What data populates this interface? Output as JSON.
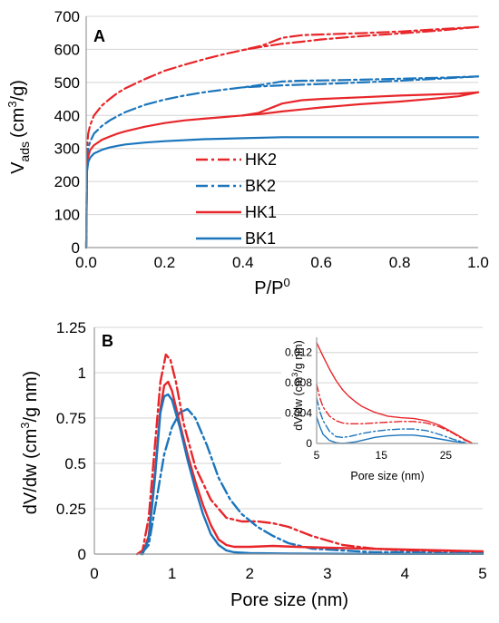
{
  "colors": {
    "red": "#e8262a",
    "blue": "#1b75bc",
    "axis": "#999999",
    "grid": "#d4d4d4"
  },
  "chart_data": [
    {
      "panel": "A",
      "type": "line",
      "xlabel": "P/P",
      "xlabel_sup": "0",
      "ylabel_main": "V",
      "ylabel_sub": "ads",
      "ylabel_unit": "(cm",
      "ylabel_unit_sup": "3",
      "ylabel_unit_end": "/g)",
      "xlim": [
        0,
        1
      ],
      "ylim": [
        0,
        700
      ],
      "xticks": [
        "0.0",
        "0.2",
        "0.4",
        "0.6",
        "0.8",
        "1.0"
      ],
      "yticks": [
        "0",
        "100",
        "200",
        "300",
        "400",
        "500",
        "600",
        "700"
      ],
      "xtick_values": [
        0,
        0.2,
        0.4,
        0.6,
        0.8,
        1.0
      ],
      "ytick_values": [
        0,
        100,
        200,
        300,
        400,
        500,
        600,
        700
      ],
      "grid": "horizontal",
      "legend_position": "bottom-center",
      "series": [
        {
          "name": "HK2",
          "color": "#e8262a",
          "style": "dashdot",
          "x": [
            0,
            0.002,
            0.005,
            0.01,
            0.02,
            0.04,
            0.06,
            0.08,
            0.1,
            0.15,
            0.2,
            0.25,
            0.3,
            0.35,
            0.4,
            0.45,
            0.5,
            0.55,
            0.6,
            0.7,
            0.8,
            0.9,
            1.0
          ],
          "y": [
            0,
            300,
            345,
            370,
            400,
            430,
            450,
            468,
            482,
            510,
            535,
            553,
            570,
            585,
            598,
            612,
            635,
            643,
            645,
            649,
            654,
            661,
            668
          ],
          "desorption": {
            "x": [
              1.0,
              0.9,
              0.8,
              0.7,
              0.6,
              0.55,
              0.5,
              0.45,
              0.4
            ],
            "y": [
              668,
              657,
              648,
              640,
              630,
              623,
              617,
              608,
              598
            ]
          }
        },
        {
          "name": "BK2",
          "color": "#1b75bc",
          "style": "dashdot",
          "x": [
            0,
            0.002,
            0.005,
            0.01,
            0.02,
            0.04,
            0.06,
            0.08,
            0.1,
            0.15,
            0.2,
            0.25,
            0.3,
            0.35,
            0.4,
            0.45,
            0.5,
            0.55,
            0.6,
            0.7,
            0.8,
            0.9,
            1.0
          ],
          "y": [
            0,
            260,
            300,
            320,
            345,
            368,
            385,
            398,
            410,
            432,
            448,
            460,
            470,
            478,
            485,
            493,
            503,
            505,
            506,
            508,
            511,
            514,
            518
          ],
          "desorption": {
            "x": [
              1.0,
              0.9,
              0.8,
              0.7,
              0.6,
              0.5,
              0.45,
              0.4
            ],
            "y": [
              518,
              511,
              505,
              500,
              495,
              491,
              488,
              485
            ]
          }
        },
        {
          "name": "HK1",
          "color": "#e8262a",
          "style": "solid",
          "x": [
            0,
            0.002,
            0.005,
            0.01,
            0.02,
            0.04,
            0.06,
            0.08,
            0.1,
            0.15,
            0.2,
            0.25,
            0.3,
            0.35,
            0.4,
            0.45,
            0.5,
            0.55,
            0.6,
            0.7,
            0.8,
            0.9,
            0.95,
            1.0
          ],
          "y": [
            0,
            240,
            275,
            295,
            310,
            326,
            336,
            345,
            352,
            366,
            377,
            385,
            390,
            395,
            400,
            405,
            412,
            418,
            424,
            434,
            442,
            452,
            458,
            470
          ],
          "desorption": {
            "x": [
              1.0,
              0.95,
              0.9,
              0.8,
              0.7,
              0.6,
              0.55,
              0.5,
              0.47,
              0.44,
              0.4
            ],
            "y": [
              470,
              466,
              464,
              460,
              455,
              450,
              446,
              436,
              422,
              408,
              400
            ]
          }
        },
        {
          "name": "BK1",
          "color": "#1b75bc",
          "style": "solid",
          "x": [
            0,
            0.002,
            0.005,
            0.01,
            0.02,
            0.04,
            0.06,
            0.08,
            0.1,
            0.15,
            0.2,
            0.3,
            0.4,
            0.5,
            0.6,
            0.7,
            0.8,
            0.9,
            1.0
          ],
          "y": [
            0,
            230,
            258,
            272,
            285,
            296,
            303,
            308,
            312,
            318,
            322,
            328,
            331,
            334,
            334,
            334,
            334,
            334,
            334
          ]
        }
      ]
    },
    {
      "panel": "B",
      "type": "line",
      "xlabel": "Pore size (nm)",
      "ylabel_main": "dV/dw (cm",
      "ylabel_sup": "3",
      "ylabel_end": "/g nm)",
      "xlim": [
        0,
        5
      ],
      "ylim": [
        0,
        1.25
      ],
      "xticks": [
        "0",
        "1",
        "2",
        "3",
        "4",
        "5"
      ],
      "yticks": [
        "0",
        "0.25",
        "0.5",
        "0.75",
        "1",
        "1.25"
      ],
      "xtick_values": [
        0,
        1,
        2,
        3,
        4,
        5
      ],
      "ytick_values": [
        0,
        0.25,
        0.5,
        0.75,
        1,
        1.25
      ],
      "grid": "horizontal",
      "series": [
        {
          "name": "HK2",
          "color": "#e8262a",
          "style": "dashdot",
          "x": [
            0.55,
            0.62,
            0.7,
            0.78,
            0.85,
            0.92,
            0.98,
            1.05,
            1.15,
            1.3,
            1.5,
            1.7,
            1.9,
            2.1,
            2.3,
            2.5,
            2.8,
            3.2,
            3.6,
            4.0,
            4.5,
            5.0
          ],
          "y": [
            0,
            0.02,
            0.2,
            0.6,
            0.95,
            1.1,
            1.07,
            0.95,
            0.72,
            0.48,
            0.3,
            0.2,
            0.18,
            0.18,
            0.17,
            0.15,
            0.1,
            0.05,
            0.03,
            0.02,
            0.015,
            0.01
          ]
        },
        {
          "name": "BK2",
          "color": "#1b75bc",
          "style": "dashdot",
          "x": [
            0.6,
            0.7,
            0.8,
            0.9,
            1.0,
            1.1,
            1.2,
            1.3,
            1.45,
            1.6,
            1.75,
            1.9,
            2.1,
            2.3,
            2.5,
            2.8,
            3.2,
            3.6,
            4.0,
            4.5,
            5.0
          ],
          "y": [
            0,
            0.05,
            0.3,
            0.55,
            0.7,
            0.78,
            0.8,
            0.75,
            0.6,
            0.42,
            0.3,
            0.22,
            0.15,
            0.1,
            0.06,
            0.03,
            0.02,
            0.01,
            0.01,
            0.005,
            0.005
          ]
        },
        {
          "name": "HK1",
          "color": "#e8262a",
          "style": "solid",
          "x": [
            0.62,
            0.7,
            0.78,
            0.85,
            0.9,
            0.95,
            1.0,
            1.1,
            1.2,
            1.3,
            1.4,
            1.5,
            1.6,
            1.7,
            1.8,
            2.0,
            2.3,
            2.6,
            3.0,
            3.5,
            4.0,
            4.5,
            5.0
          ],
          "y": [
            0,
            0.1,
            0.45,
            0.8,
            0.93,
            0.95,
            0.9,
            0.72,
            0.55,
            0.4,
            0.27,
            0.16,
            0.08,
            0.05,
            0.04,
            0.04,
            0.045,
            0.04,
            0.035,
            0.03,
            0.025,
            0.02,
            0.015
          ]
        },
        {
          "name": "BK1",
          "color": "#1b75bc",
          "style": "solid",
          "x": [
            0.62,
            0.7,
            0.78,
            0.85,
            0.9,
            0.95,
            1.0,
            1.1,
            1.2,
            1.3,
            1.4,
            1.5,
            1.6,
            1.7,
            1.8,
            2.0,
            2.5,
            3.0,
            4.0,
            5.0
          ],
          "y": [
            0,
            0.08,
            0.42,
            0.78,
            0.87,
            0.88,
            0.85,
            0.7,
            0.52,
            0.36,
            0.22,
            0.11,
            0.05,
            0.02,
            0.01,
            0.005,
            0.003,
            0.002,
            0.001,
            0.001
          ]
        }
      ]
    },
    {
      "panel": "B-inset",
      "type": "line",
      "xlabel": "Pore size (nm)",
      "ylabel_main": "dV/dw (cm",
      "ylabel_sup": "3",
      "ylabel_end": "/g nm)",
      "xlim": [
        5,
        30
      ],
      "ylim": [
        0,
        0.014
      ],
      "xticks": [
        "5",
        "15",
        "25"
      ],
      "yticks": [
        "0",
        "0.004",
        "0.008",
        "0.012"
      ],
      "xtick_values": [
        5,
        15,
        25
      ],
      "ytick_values": [
        0,
        0.004,
        0.008,
        0.012
      ],
      "grid": "horizontal",
      "series": [
        {
          "name": "HK2",
          "color": "#e8262a",
          "style": "dashdot",
          "x": [
            5,
            5.5,
            6,
            7,
            8,
            9,
            10,
            12,
            14,
            16,
            18,
            20,
            22,
            24,
            26,
            28,
            29
          ],
          "y": [
            0.0078,
            0.006,
            0.0048,
            0.0036,
            0.003,
            0.0027,
            0.0026,
            0.0026,
            0.0027,
            0.0028,
            0.0029,
            0.0029,
            0.0027,
            0.0022,
            0.0014,
            0.0004,
            0.0001
          ]
        },
        {
          "name": "BK2",
          "color": "#1b75bc",
          "style": "dashdot",
          "x": [
            5,
            5.5,
            6,
            7,
            8,
            9,
            10,
            11,
            12,
            14,
            16,
            18,
            20,
            22,
            24,
            26,
            28
          ],
          "y": [
            0.006,
            0.0042,
            0.003,
            0.0016,
            0.0009,
            0.0008,
            0.0009,
            0.0011,
            0.0013,
            0.0016,
            0.0018,
            0.0019,
            0.0019,
            0.0017,
            0.0012,
            0.0006,
            0.0001
          ]
        },
        {
          "name": "HK1",
          "color": "#e8262a",
          "style": "solid",
          "x": [
            5,
            6,
            7,
            8,
            9,
            10,
            11,
            12,
            14,
            16,
            18,
            20,
            22,
            24,
            26,
            28,
            29
          ],
          "y": [
            0.0133,
            0.0115,
            0.0098,
            0.0083,
            0.0071,
            0.0062,
            0.0055,
            0.0049,
            0.0041,
            0.0036,
            0.0034,
            0.0033,
            0.003,
            0.0024,
            0.0015,
            0.0005,
            0.0001
          ]
        },
        {
          "name": "BK1",
          "color": "#1b75bc",
          "style": "solid",
          "x": [
            5,
            5.5,
            6,
            7,
            8,
            9,
            10,
            11,
            12,
            14,
            16,
            18,
            20,
            22,
            24,
            26,
            28
          ],
          "y": [
            0.0035,
            0.0022,
            0.0012,
            0.0004,
            0.0001,
            0.0,
            0.0001,
            0.0002,
            0.0004,
            0.0008,
            0.001,
            0.0011,
            0.0011,
            0.0009,
            0.0006,
            0.0003,
            0.0001
          ]
        }
      ]
    }
  ]
}
